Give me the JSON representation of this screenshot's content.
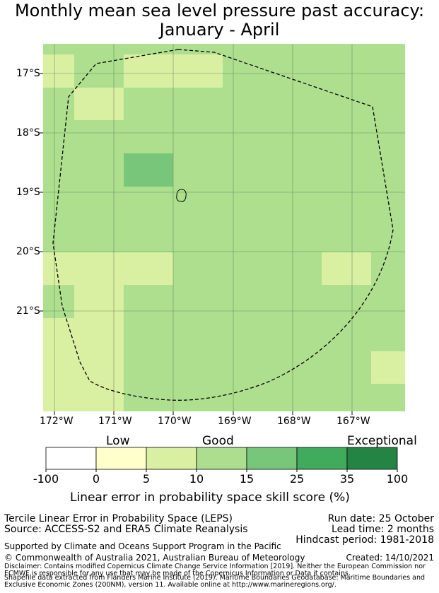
{
  "title": {
    "line1": "Monthly mean sea level pressure past accuracy:",
    "line2": "January - April"
  },
  "map": {
    "lat_ticks": [
      "17°S",
      "18°S",
      "19°S",
      "20°S",
      "21°S"
    ],
    "lon_ticks": [
      "172°W",
      "171°W",
      "170°W",
      "169°W",
      "168°W",
      "167°W"
    ],
    "colors": {
      "base": "#addf8e",
      "light": "#d9f0a3",
      "dark": "#78c679",
      "grid": "#6f8f5a"
    }
  },
  "legend": {
    "categories": [
      "Low",
      "Good",
      "Exceptional"
    ],
    "bins": [
      "-100",
      "0",
      "5",
      "10",
      "15",
      "25",
      "35",
      "100"
    ],
    "colors": [
      "#ffffff",
      "#ffffcc",
      "#d9f0a3",
      "#addd8e",
      "#78c679",
      "#41ab5d",
      "#238443"
    ],
    "axis_label": "Linear error in probability space skill score (%)"
  },
  "footer": {
    "left_line1": "Tercile Linear Error in Probability Space (LEPS)",
    "left_line2": "Source: ACCESS-S2 and ERA5 Climate Reanalysis",
    "right_line1": "Run date: 25 October",
    "right_line2": "Lead time: 2 months",
    "right_line3": "Hindcast period: 1981-2018",
    "support": "Supported by Climate and Oceans Support Program in the Pacific",
    "copyright": "© Commonwealth of Australia 2021, Australian Bureau of Meteorology",
    "created": "Created: 14/10/2021",
    "disclaimer1": "Disclaimer: Contains modified Copernicus Climate Change Service Information [2019]. Neither the European Commission nor",
    "disclaimer2": "ECMWF is responsible for any use that may be made of the Copernicus Information or Data it contains.",
    "shapefile1": "Shapefile data extracted from Flanders Marine Institute (2019). Maritime Boundaries Geodatabase: Maritime Boundaries and",
    "shapefile2": "Exclusive Economic Zones (200NM), version 11. Available online at http://www.marineregions.org/."
  }
}
